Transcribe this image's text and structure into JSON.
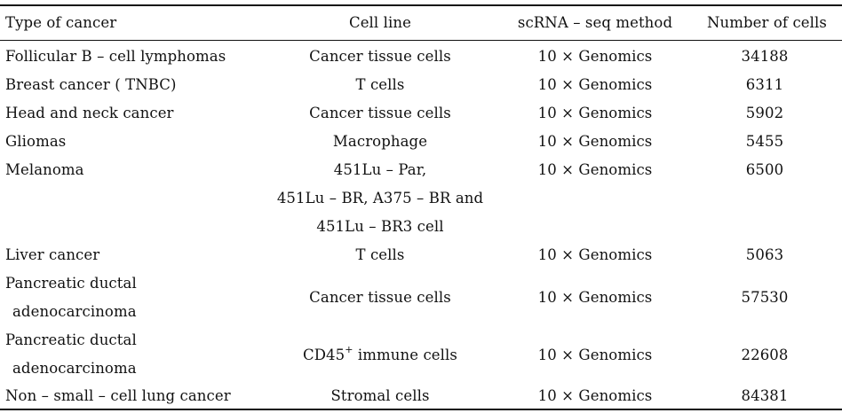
{
  "table": {
    "headers": {
      "type": "Type of cancer",
      "cell_line": "Cell line",
      "method": "scRNA – seq method",
      "number": "Number of cells"
    },
    "rows": [
      {
        "type": "Follicular B – cell lymphomas",
        "cell_line": "Cancer tissue cells",
        "method": "10 × Genomics",
        "number": "34188"
      },
      {
        "type": "Breast cancer ( TNBC)",
        "cell_line": "T cells",
        "method": "10 × Genomics",
        "number": "6311"
      },
      {
        "type": "Head and neck cancer",
        "cell_line": "Cancer tissue cells",
        "method": "10 × Genomics",
        "number": "5902"
      },
      {
        "type": "Gliomas",
        "cell_line": "Macrophage",
        "method": "10 × Genomics",
        "number": "5455"
      },
      {
        "type": "Melanoma",
        "cell_line_lines": [
          "451Lu – Par,",
          "451Lu – BR, A375 – BR and",
          "451Lu – BR3 cell"
        ],
        "method": "10 × Genomics",
        "number": "6500"
      },
      {
        "type": "Liver cancer",
        "cell_line": "T cells",
        "method": "10 × Genomics",
        "number": "5063"
      },
      {
        "type_lines": [
          "Pancreatic ductal",
          "adenocarcinoma"
        ],
        "cell_line": "Cancer tissue cells",
        "method": "10 × Genomics",
        "number": "57530"
      },
      {
        "type_lines": [
          "Pancreatic ductal",
          "adenocarcinoma"
        ],
        "cell_line_prefix": "CD45",
        "cell_line_sup": "+",
        "cell_line_suffix": " immune cells",
        "method": "10 × Genomics",
        "number": "22608"
      },
      {
        "type": "Non – small – cell lung cancer",
        "cell_line": "Stromal cells",
        "method": "10 × Genomics",
        "number": "84381"
      }
    ]
  }
}
